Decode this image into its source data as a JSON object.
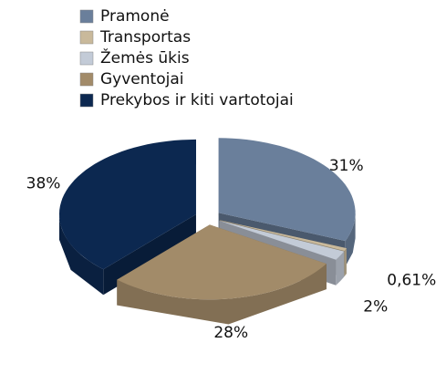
{
  "chart_data": {
    "type": "pie",
    "categories": [
      "Pramonė",
      "Transportas",
      "Žemės ūkis",
      "Gyventojai",
      "Prekybos ir kiti vartotojai"
    ],
    "values": [
      31,
      0.61,
      2,
      28,
      38
    ],
    "value_labels": [
      "31%",
      "0,61%",
      "2%",
      "28%",
      "38%"
    ],
    "colors": [
      "#6a7f9b",
      "#c9b99b",
      "#c3cbd7",
      "#a28b69",
      "#0c2850"
    ]
  }
}
